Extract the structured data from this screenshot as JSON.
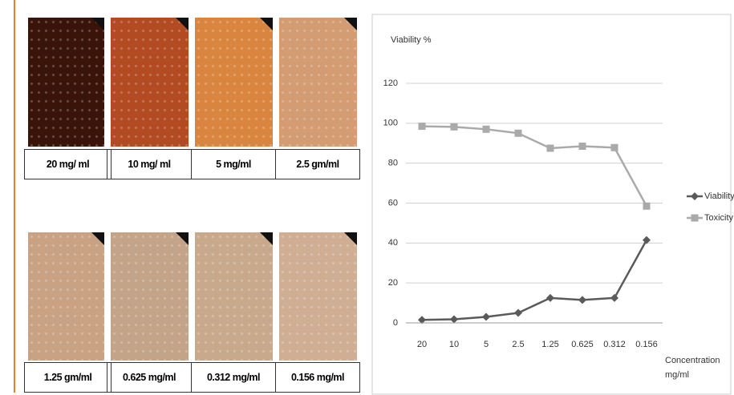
{
  "panels": {
    "labels": [
      "20 mg/ ml",
      "10 mg/ ml",
      "5 mg/ml",
      "2.5 gm/ml",
      "1.25 gm/ml",
      "0.625 mg/ml",
      "0.312 mg/ml",
      "0.156 mg/ml"
    ]
  },
  "chart_data": {
    "type": "line",
    "y_label": "Viability %",
    "x_label": "Concentration mg/ml",
    "categories": [
      "20",
      "10",
      "5",
      "2.5",
      "1.25",
      "0.625",
      "0.312",
      "0.156"
    ],
    "series": [
      {
        "name": "Viability",
        "color": "#5a5a5a",
        "marker": "diamond",
        "values": [
          1.5,
          1.8,
          3,
          5,
          12.5,
          11.5,
          12.5,
          41.5
        ]
      },
      {
        "name": "Toxicity",
        "color": "#aaaaaa",
        "marker": "square",
        "values": [
          98.5,
          98.2,
          97,
          95,
          87.5,
          88.5,
          87.8,
          58.5
        ]
      }
    ],
    "ylim": [
      0,
      120
    ],
    "yticks": [
      0,
      20,
      40,
      60,
      80,
      100,
      120
    ],
    "grid": true,
    "legend": "right"
  }
}
